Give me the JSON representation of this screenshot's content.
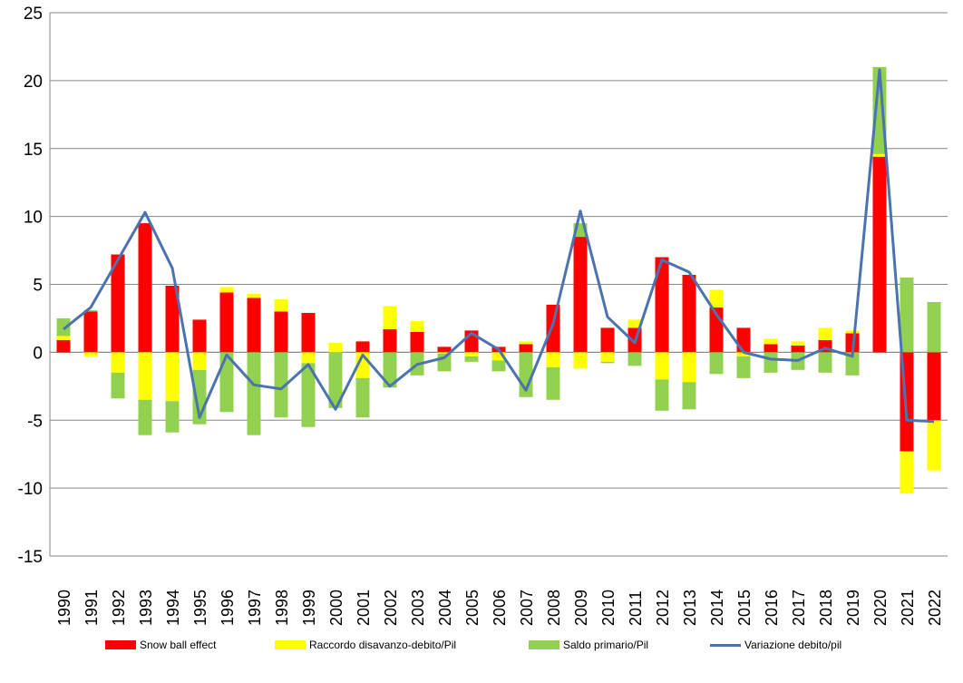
{
  "chart_data": {
    "type": "bar",
    "stacked": true,
    "categories": [
      "1990",
      "1991",
      "1992",
      "1993",
      "1994",
      "1995",
      "1996",
      "1997",
      "1998",
      "1999",
      "2000",
      "2001",
      "2002",
      "2003",
      "2004",
      "2005",
      "2006",
      "2007",
      "2008",
      "2009",
      "2010",
      "2011",
      "2012",
      "2013",
      "2014",
      "2015",
      "2016",
      "2017",
      "2018",
      "2019",
      "2020",
      "2021",
      "2022"
    ],
    "ylim": [
      -15,
      25
    ],
    "yticks": [
      -15,
      -10,
      -5,
      0,
      5,
      10,
      15,
      20,
      25
    ],
    "grid": true,
    "legend_position": "bottom",
    "series": [
      {
        "name": "Snow ball effect",
        "color": "#ff0000",
        "kind": "bar",
        "values": [
          0.9,
          3.0,
          7.2,
          9.5,
          4.9,
          2.4,
          4.4,
          4.0,
          3.0,
          2.9,
          0.0,
          0.8,
          1.7,
          1.5,
          0.4,
          1.6,
          0.4,
          0.6,
          3.5,
          8.5,
          1.8,
          1.8,
          7.0,
          5.7,
          3.3,
          1.8,
          0.6,
          0.5,
          0.9,
          1.4,
          14.4,
          -7.3,
          -5.0
        ]
      },
      {
        "name": "Raccordo disavanzo-debito/Pil",
        "color": "#ffff00",
        "kind": "bar",
        "values": [
          0.3,
          -0.3,
          -1.5,
          -3.5,
          -3.6,
          -1.3,
          0.4,
          0.3,
          0.9,
          -0.8,
          0.7,
          -1.9,
          1.7,
          0.8,
          -0.1,
          -0.3,
          -0.6,
          0.2,
          -1.1,
          -1.2,
          -0.7,
          0.6,
          -2.0,
          -2.2,
          1.3,
          -0.3,
          0.4,
          0.3,
          0.9,
          0.2,
          0.2,
          -3.1,
          -3.7
        ]
      },
      {
        "name": "Saldo primario/Pil",
        "color": "#92d050",
        "kind": "bar",
        "values": [
          1.3,
          0.1,
          -1.9,
          -2.6,
          -2.3,
          -4.0,
          -4.4,
          -6.1,
          -4.8,
          -4.7,
          -4.1,
          -2.9,
          -2.6,
          -1.7,
          -1.3,
          -0.4,
          -0.8,
          -3.3,
          -2.4,
          1.0,
          -0.1,
          -1.0,
          -2.3,
          -2.0,
          -1.6,
          -1.6,
          -1.5,
          -1.3,
          -1.5,
          -1.7,
          6.4,
          5.5,
          3.7
        ]
      },
      {
        "name": "Variazione debito/pil",
        "color": "#4a73b0",
        "kind": "line",
        "values": [
          1.7,
          3.3,
          6.8,
          10.3,
          6.2,
          -4.8,
          -0.2,
          -2.4,
          -2.7,
          -0.9,
          -4.2,
          -0.2,
          -2.5,
          -0.9,
          -0.4,
          1.4,
          0.2,
          -2.8,
          2.1,
          10.4,
          2.6,
          0.7,
          6.8,
          5.9,
          2.8,
          0.0,
          -0.5,
          -0.6,
          0.3,
          -0.3,
          20.8,
          -5.0,
          -5.1
        ]
      }
    ]
  }
}
